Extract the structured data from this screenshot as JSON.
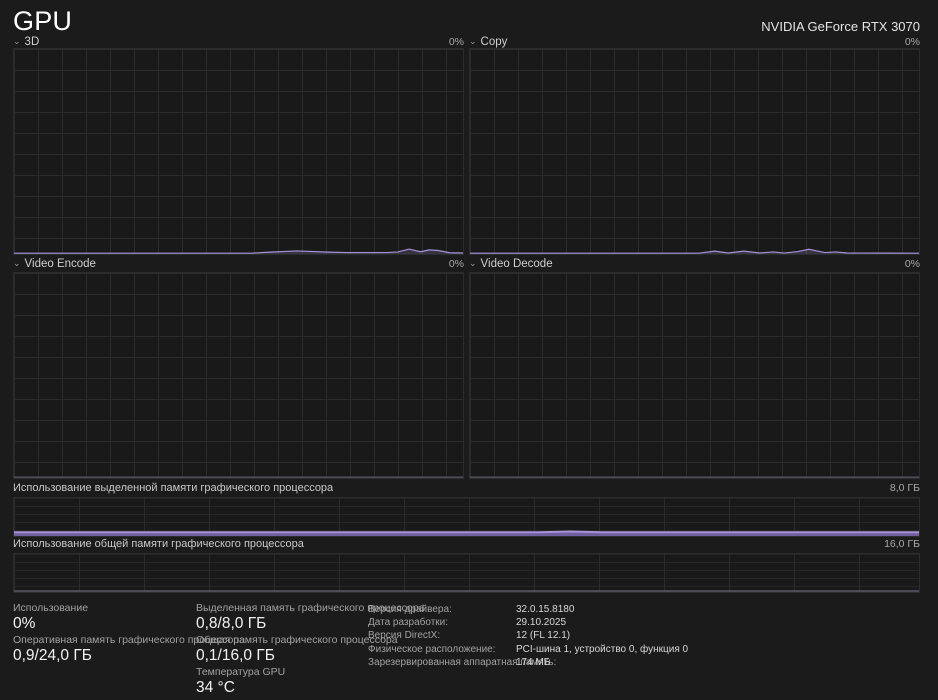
{
  "header": {
    "title": "GPU",
    "device_name": "NVIDIA GeForce RTX 3070"
  },
  "icons": {
    "chevron_down": "⌄"
  },
  "colors": {
    "accent_line": "#a593d6",
    "accent_fill": "rgba(167,145,216,0.22)",
    "memory_fill": "#6f5f9e",
    "memory_line": "#a791d8",
    "idle_line": "#57545f",
    "background": "#1b1b1b",
    "grid": "#2c2c2c"
  },
  "engine_charts": [
    {
      "label": "3D",
      "value": "0%",
      "stroke": "#a593d6",
      "fill": "rgba(167,145,216,0.22)",
      "stroke_width": 1.2,
      "points": [
        [
          0,
          0.4
        ],
        [
          0.53,
          0.4
        ],
        [
          0.57,
          0.9
        ],
        [
          0.63,
          1.5
        ],
        [
          0.7,
          0.9
        ],
        [
          0.74,
          0.7
        ],
        [
          0.83,
          0.7
        ],
        [
          0.855,
          1.0
        ],
        [
          0.88,
          2.4
        ],
        [
          0.905,
          1.1
        ],
        [
          0.925,
          2.0
        ],
        [
          0.945,
          1.7
        ],
        [
          0.97,
          0.6
        ],
        [
          1,
          0.5
        ]
      ]
    },
    {
      "label": "Copy",
      "value": "0%",
      "stroke": "#a593d6",
      "fill": "rgba(167,145,216,0.22)",
      "stroke_width": 1.2,
      "points": [
        [
          0,
          0.4
        ],
        [
          0.51,
          0.4
        ],
        [
          0.545,
          1.4
        ],
        [
          0.575,
          0.5
        ],
        [
          0.61,
          1.4
        ],
        [
          0.645,
          0.5
        ],
        [
          0.675,
          1.0
        ],
        [
          0.7,
          0.45
        ],
        [
          0.73,
          1.2
        ],
        [
          0.755,
          2.3
        ],
        [
          0.79,
          0.7
        ],
        [
          0.815,
          1.0
        ],
        [
          0.84,
          0.5
        ],
        [
          1,
          0.4
        ]
      ]
    },
    {
      "label": "Video Encode",
      "value": "0%",
      "stroke": "#57545f",
      "stroke_width": 1.4,
      "points": [
        [
          0,
          0.4
        ],
        [
          1,
          0.4
        ]
      ]
    },
    {
      "label": "Video Decode",
      "value": "0%",
      "stroke": "#57545f",
      "stroke_width": 1.4,
      "points": [
        [
          0,
          0.4
        ],
        [
          1,
          0.4
        ]
      ]
    }
  ],
  "memory_charts": [
    {
      "label": "Использование выделенной памяти графического процессора",
      "max_label": "8,0 ГБ",
      "stroke": "#a791d8",
      "fill": "#6f5f9e",
      "stroke_width": 2,
      "points": [
        [
          0,
          10
        ],
        [
          0.58,
          10
        ],
        [
          0.615,
          12
        ],
        [
          0.65,
          10
        ],
        [
          1,
          10
        ]
      ]
    },
    {
      "label": "Использование общей памяти графического процессора",
      "max_label": "16,0 ГБ",
      "stroke": "#5e5b66",
      "stroke_width": 1.5,
      "points": [
        [
          0,
          2.5
        ],
        [
          1,
          2.5
        ]
      ]
    }
  ],
  "stats": {
    "col1": [
      {
        "label": "Использование",
        "value": "0%"
      },
      {
        "label": "Оперативная память графического процессора",
        "value": "0,9/24,0 ГБ"
      }
    ],
    "col2": [
      {
        "label": "Выделенная память графического процессора",
        "value": "0,8/8,0 ГБ"
      },
      {
        "label": "Общая память графического процессора",
        "value": "0,1/16,0 ГБ"
      },
      {
        "label": "Температура GPU",
        "value": "34 °C"
      }
    ],
    "details": [
      {
        "key": "Версия драйвера:",
        "value": "32.0.15.8180"
      },
      {
        "key": "Дата разработки:",
        "value": "29.10.2025"
      },
      {
        "key": "Версия DirectX:",
        "value": "12 (FL 12.1)"
      },
      {
        "key": "Физическое расположение:",
        "value": "PCI-шина 1, устройство 0, функция 0"
      },
      {
        "key": "Зарезервированная аппаратная память:",
        "value": "174 МБ"
      }
    ]
  }
}
